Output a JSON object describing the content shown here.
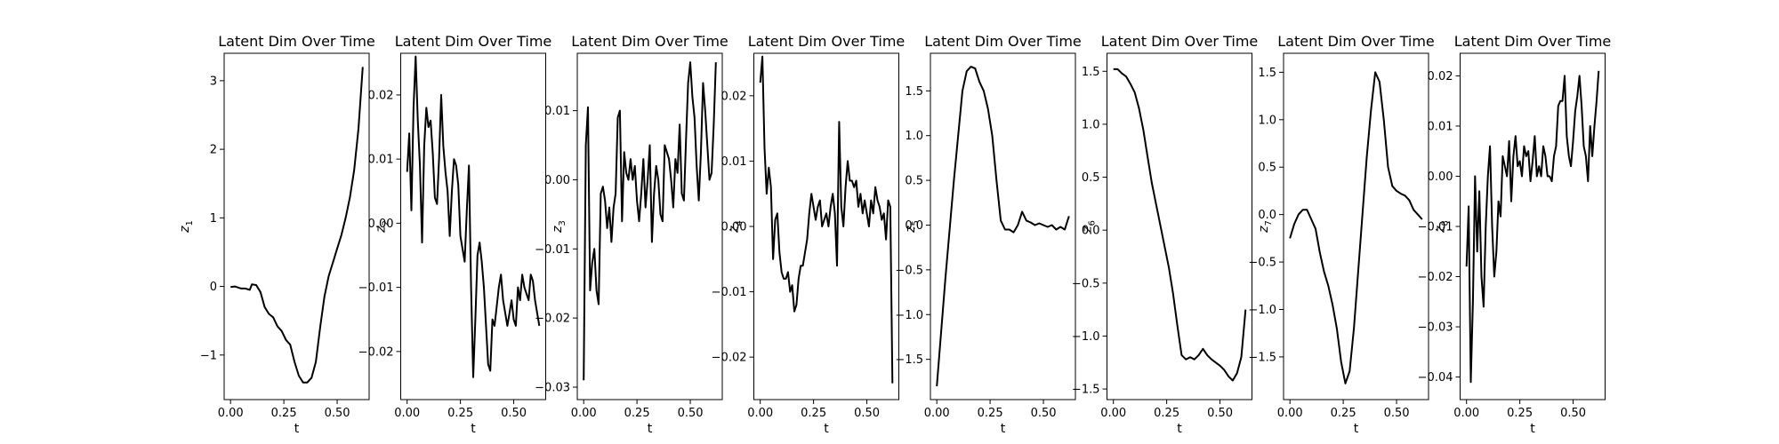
{
  "chart_data": [
    {
      "type": "line",
      "title": "Latent Dim Over Time",
      "xlabel": "t",
      "ylabel": "z",
      "ylabel_sub": "1",
      "xlim": [
        -0.03,
        0.65
      ],
      "ylim": [
        -1.65,
        3.4
      ],
      "xticks": [
        "0.00",
        "0.25",
        "0.50"
      ],
      "xtick_values": [
        0,
        0.25,
        0.5
      ],
      "yticks": [
        "−1",
        "0",
        "1",
        "2",
        "3"
      ],
      "ytick_values": [
        -1,
        0,
        1,
        2,
        3
      ],
      "series": [
        {
          "x": [
            0,
            0.02,
            0.05,
            0.07,
            0.09,
            0.1,
            0.12,
            0.14,
            0.16,
            0.18,
            0.2,
            0.22,
            0.24,
            0.26,
            0.28,
            0.3,
            0.32,
            0.34,
            0.36,
            0.38,
            0.4,
            0.42,
            0.44,
            0.46,
            0.48,
            0.5,
            0.52,
            0.54,
            0.56,
            0.58,
            0.6,
            0.62
          ],
          "y": [
            -0.01,
            0.0,
            -0.03,
            -0.03,
            -0.05,
            0.03,
            0.02,
            -0.08,
            -0.3,
            -0.4,
            -0.45,
            -0.58,
            -0.65,
            -0.78,
            -0.85,
            -1.1,
            -1.3,
            -1.4,
            -1.4,
            -1.33,
            -1.1,
            -0.6,
            -0.15,
            0.15,
            0.35,
            0.55,
            0.75,
            1.0,
            1.3,
            1.7,
            2.3,
            3.2
          ]
        }
      ]
    },
    {
      "type": "line",
      "title": "Latent Dim Over Time",
      "xlabel": "t",
      "ylabel": "z",
      "ylabel_sub": "2",
      "xlim": [
        -0.03,
        0.65
      ],
      "ylim": [
        -0.0275,
        0.0265
      ],
      "xticks": [
        "0.00",
        "0.25",
        "0.50"
      ],
      "xtick_values": [
        0,
        0.25,
        0.5
      ],
      "yticks": [
        "−0.02",
        "−0.01",
        "0.00",
        "0.01",
        "0.02"
      ],
      "ytick_values": [
        -0.02,
        -0.01,
        0,
        0.01,
        0.02
      ],
      "series": [
        {
          "x": [
            0,
            0.01,
            0.02,
            0.03,
            0.04,
            0.05,
            0.06,
            0.07,
            0.08,
            0.09,
            0.1,
            0.11,
            0.12,
            0.13,
            0.14,
            0.15,
            0.16,
            0.17,
            0.18,
            0.19,
            0.2,
            0.21,
            0.22,
            0.23,
            0.24,
            0.25,
            0.26,
            0.27,
            0.28,
            0.29,
            0.3,
            0.31,
            0.32,
            0.33,
            0.34,
            0.35,
            0.36,
            0.37,
            0.38,
            0.39,
            0.4,
            0.41,
            0.42,
            0.43,
            0.44,
            0.45,
            0.46,
            0.47,
            0.48,
            0.49,
            0.5,
            0.51,
            0.52,
            0.53,
            0.54,
            0.55,
            0.56,
            0.57,
            0.58,
            0.59,
            0.6,
            0.61,
            0.62
          ],
          "y": [
            0.008,
            0.014,
            0.002,
            0.018,
            0.026,
            0.016,
            0.009,
            -0.003,
            0.012,
            0.018,
            0.015,
            0.016,
            0.011,
            0.004,
            0.003,
            0.01,
            0.02,
            0.012,
            0.008,
            0.005,
            -0.002,
            0.005,
            0.01,
            0.009,
            0.006,
            -0.002,
            -0.004,
            -0.006,
            0.002,
            0.009,
            -0.01,
            -0.024,
            -0.015,
            -0.005,
            -0.003,
            -0.006,
            -0.01,
            -0.016,
            -0.022,
            -0.023,
            -0.015,
            -0.016,
            -0.013,
            -0.01,
            -0.008,
            -0.012,
            -0.014,
            -0.016,
            -0.014,
            -0.012,
            -0.015,
            -0.016,
            -0.01,
            -0.012,
            -0.008,
            -0.01,
            -0.011,
            -0.012,
            -0.008,
            -0.009,
            -0.012,
            -0.014,
            -0.016
          ]
        }
      ]
    },
    {
      "type": "line",
      "title": "Latent Dim Over Time",
      "xlabel": "t",
      "ylabel": "z",
      "ylabel_sub": "3",
      "xlim": [
        -0.03,
        0.65
      ],
      "ylim": [
        -0.0318,
        0.0183
      ],
      "xticks": [
        "0.00",
        "0.25",
        "0.50"
      ],
      "xtick_values": [
        0,
        0.25,
        0.5
      ],
      "yticks": [
        "−0.03",
        "−0.02",
        "−0.01",
        "0.00",
        "0.01"
      ],
      "ytick_values": [
        -0.03,
        -0.02,
        -0.01,
        0,
        0.01
      ],
      "series": [
        {
          "x": [
            0,
            0.01,
            0.02,
            0.03,
            0.04,
            0.05,
            0.06,
            0.07,
            0.08,
            0.09,
            0.1,
            0.11,
            0.12,
            0.13,
            0.14,
            0.15,
            0.16,
            0.17,
            0.18,
            0.19,
            0.2,
            0.21,
            0.22,
            0.23,
            0.24,
            0.25,
            0.26,
            0.27,
            0.28,
            0.29,
            0.3,
            0.31,
            0.32,
            0.33,
            0.34,
            0.35,
            0.36,
            0.37,
            0.38,
            0.39,
            0.4,
            0.41,
            0.42,
            0.43,
            0.44,
            0.45,
            0.46,
            0.47,
            0.48,
            0.49,
            0.5,
            0.51,
            0.52,
            0.53,
            0.54,
            0.55,
            0.56,
            0.57,
            0.58,
            0.59,
            0.6,
            0.61,
            0.62
          ],
          "y": [
            -0.029,
            0.005,
            0.0105,
            -0.016,
            -0.012,
            -0.01,
            -0.016,
            -0.018,
            -0.002,
            -0.001,
            -0.003,
            -0.007,
            -0.004,
            -0.009,
            -0.004,
            -0.002,
            0.009,
            0.01,
            -0.006,
            0.004,
            0.001,
            0.0,
            0.003,
            0.0,
            0.002,
            -0.003,
            -0.006,
            -0.002,
            0.003,
            -0.004,
            0.0,
            0.005,
            -0.009,
            -0.002,
            0.002,
            0.0,
            -0.005,
            -0.006,
            0.005,
            0.004,
            0.003,
            0.0,
            -0.004,
            0.003,
            0.001,
            0.008,
            -0.002,
            -0.003,
            0.006,
            0.014,
            0.017,
            0.012,
            0.009,
            0.002,
            -0.003,
            0.004,
            0.014,
            0.01,
            0.005,
            0.0,
            0.001,
            0.008,
            0.017
          ]
        }
      ]
    },
    {
      "type": "line",
      "title": "Latent Dim Over Time",
      "xlabel": "t",
      "ylabel": "z",
      "ylabel_sub": "4",
      "xlim": [
        -0.03,
        0.65
      ],
      "ylim": [
        -0.0265,
        0.0265
      ],
      "xticks": [
        "0.00",
        "0.25",
        "0.50"
      ],
      "xtick_values": [
        0,
        0.25,
        0.5
      ],
      "yticks": [
        "−0.02",
        "−0.01",
        "0.00",
        "0.01",
        "0.02"
      ],
      "ytick_values": [
        -0.02,
        -0.01,
        0,
        0.01,
        0.02
      ],
      "series": [
        {
          "x": [
            0,
            0.01,
            0.02,
            0.03,
            0.04,
            0.05,
            0.06,
            0.07,
            0.08,
            0.09,
            0.1,
            0.11,
            0.12,
            0.13,
            0.14,
            0.15,
            0.16,
            0.17,
            0.18,
            0.19,
            0.2,
            0.21,
            0.22,
            0.23,
            0.24,
            0.25,
            0.26,
            0.27,
            0.28,
            0.29,
            0.3,
            0.31,
            0.32,
            0.33,
            0.34,
            0.35,
            0.36,
            0.37,
            0.38,
            0.39,
            0.4,
            0.41,
            0.42,
            0.43,
            0.44,
            0.45,
            0.46,
            0.47,
            0.48,
            0.49,
            0.5,
            0.51,
            0.52,
            0.53,
            0.54,
            0.55,
            0.56,
            0.57,
            0.58,
            0.59,
            0.6,
            0.61,
            0.62
          ],
          "y": [
            0.022,
            0.026,
            0.012,
            0.005,
            0.009,
            0.006,
            -0.005,
            0.001,
            0.002,
            -0.004,
            -0.007,
            -0.008,
            -0.008,
            -0.007,
            -0.01,
            -0.009,
            -0.013,
            -0.012,
            -0.008,
            -0.006,
            -0.006,
            -0.004,
            -0.002,
            0.002,
            0.005,
            0.003,
            0.001,
            0.003,
            0.004,
            0.0,
            0.001,
            0.002,
            0.0,
            0.003,
            0.005,
            0.002,
            -0.006,
            0.016,
            0.003,
            0.0,
            0.006,
            0.01,
            0.007,
            0.007,
            0.006,
            0.007,
            0.003,
            0.005,
            0.002,
            0.004,
            0.002,
            0.0,
            0.004,
            0.002,
            0.006,
            0.004,
            0.003,
            0.001,
            0.002,
            -0.002,
            0.004,
            0.003,
            -0.024
          ]
        }
      ]
    },
    {
      "type": "line",
      "title": "Latent Dim Over Time",
      "xlabel": "t",
      "ylabel": "z",
      "ylabel_sub": "5",
      "xlim": [
        -0.03,
        0.65
      ],
      "ylim": [
        -1.95,
        1.92
      ],
      "xticks": [
        "0.00",
        "0.25",
        "0.50"
      ],
      "xtick_values": [
        0,
        0.25,
        0.5
      ],
      "yticks": [
        "−1.5",
        "−1.0",
        "−0.5",
        "0.0",
        "0.5",
        "1.0",
        "1.5"
      ],
      "ytick_values": [
        -1.5,
        -1.0,
        -0.5,
        0,
        0.5,
        1.0,
        1.5
      ],
      "series": [
        {
          "x": [
            0,
            0.02,
            0.04,
            0.06,
            0.08,
            0.1,
            0.12,
            0.14,
            0.16,
            0.18,
            0.2,
            0.22,
            0.24,
            0.26,
            0.28,
            0.3,
            0.32,
            0.34,
            0.36,
            0.38,
            0.4,
            0.42,
            0.44,
            0.46,
            0.48,
            0.5,
            0.52,
            0.54,
            0.56,
            0.58,
            0.6,
            0.62
          ],
          "y": [
            -1.8,
            -1.2,
            -0.6,
            -0.05,
            0.5,
            1.0,
            1.5,
            1.72,
            1.77,
            1.75,
            1.6,
            1.5,
            1.3,
            1.0,
            0.5,
            0.05,
            -0.05,
            -0.05,
            -0.08,
            0.0,
            0.15,
            0.05,
            0.03,
            0.0,
            0.02,
            0.0,
            -0.02,
            0.0,
            -0.05,
            -0.02,
            -0.05,
            0.1
          ]
        }
      ]
    },
    {
      "type": "line",
      "title": "Latent Dim Over Time",
      "xlabel": "t",
      "ylabel": "z",
      "ylabel_sub": "6",
      "xlim": [
        -0.03,
        0.65
      ],
      "ylim": [
        -1.6,
        1.67
      ],
      "xticks": [
        "0.00",
        "0.25",
        "0.50"
      ],
      "xtick_values": [
        0,
        0.25,
        0.5
      ],
      "yticks": [
        "−1.5",
        "−1.0",
        "−0.5",
        "0.0",
        "0.5",
        "1.0",
        "1.5"
      ],
      "ytick_values": [
        -1.5,
        -1.0,
        -0.5,
        0,
        0.5,
        1.0,
        1.5
      ],
      "series": [
        {
          "x": [
            0,
            0.02,
            0.04,
            0.06,
            0.08,
            0.1,
            0.12,
            0.14,
            0.16,
            0.18,
            0.2,
            0.22,
            0.24,
            0.26,
            0.28,
            0.3,
            0.32,
            0.34,
            0.36,
            0.38,
            0.4,
            0.42,
            0.44,
            0.46,
            0.48,
            0.5,
            0.52,
            0.54,
            0.56,
            0.58,
            0.6,
            0.62
          ],
          "y": [
            1.52,
            1.52,
            1.48,
            1.45,
            1.38,
            1.3,
            1.15,
            0.95,
            0.7,
            0.45,
            0.25,
            0.05,
            -0.15,
            -0.35,
            -0.6,
            -0.9,
            -1.18,
            -1.22,
            -1.2,
            -1.22,
            -1.18,
            -1.12,
            -1.18,
            -1.22,
            -1.25,
            -1.28,
            -1.32,
            -1.38,
            -1.42,
            -1.35,
            -1.2,
            -0.75
          ]
        }
      ]
    },
    {
      "type": "line",
      "title": "Latent Dim Over Time",
      "xlabel": "t",
      "ylabel": "z",
      "ylabel_sub": "7",
      "xlim": [
        -0.03,
        0.65
      ],
      "ylim": [
        -1.95,
        1.7
      ],
      "xticks": [
        "0.00",
        "0.25",
        "0.50"
      ],
      "xtick_values": [
        0,
        0.25,
        0.5
      ],
      "yticks": [
        "−1.5",
        "−1.0",
        "−0.5",
        "0.0",
        "0.5",
        "1.0",
        "1.5"
      ],
      "ytick_values": [
        -1.5,
        -1.0,
        -0.5,
        0,
        0.5,
        1.0,
        1.5
      ],
      "series": [
        {
          "x": [
            0,
            0.02,
            0.04,
            0.06,
            0.08,
            0.1,
            0.12,
            0.14,
            0.16,
            0.18,
            0.2,
            0.22,
            0.24,
            0.26,
            0.28,
            0.3,
            0.32,
            0.34,
            0.36,
            0.38,
            0.4,
            0.42,
            0.44,
            0.46,
            0.48,
            0.5,
            0.52,
            0.54,
            0.56,
            0.58,
            0.6,
            0.62
          ],
          "y": [
            -0.25,
            -0.1,
            0.0,
            0.05,
            0.05,
            -0.05,
            -0.15,
            -0.4,
            -0.6,
            -0.75,
            -0.95,
            -1.2,
            -1.55,
            -1.78,
            -1.65,
            -1.2,
            -0.6,
            0.0,
            0.6,
            1.1,
            1.5,
            1.4,
            1.0,
            0.5,
            0.3,
            0.25,
            0.22,
            0.2,
            0.15,
            0.05,
            0.0,
            -0.05
          ]
        }
      ]
    },
    {
      "type": "line",
      "title": "Latent Dim Over Time",
      "xlabel": "t",
      "ylabel": "z",
      "ylabel_sub": "8",
      "xlim": [
        -0.03,
        0.65
      ],
      "ylim": [
        -0.0445,
        0.0245
      ],
      "xticks": [
        "0.00",
        "0.25",
        "0.50"
      ],
      "xtick_values": [
        0,
        0.25,
        0.5
      ],
      "yticks": [
        "−0.04",
        "−0.03",
        "−0.02",
        "−0.01",
        "0.00",
        "0.01",
        "0.02"
      ],
      "ytick_values": [
        -0.04,
        -0.03,
        -0.02,
        -0.01,
        0,
        0.01,
        0.02
      ],
      "series": [
        {
          "x": [
            0,
            0.01,
            0.02,
            0.03,
            0.04,
            0.05,
            0.06,
            0.07,
            0.08,
            0.09,
            0.1,
            0.11,
            0.12,
            0.13,
            0.14,
            0.15,
            0.16,
            0.17,
            0.18,
            0.19,
            0.2,
            0.21,
            0.22,
            0.23,
            0.24,
            0.25,
            0.26,
            0.27,
            0.28,
            0.29,
            0.3,
            0.31,
            0.32,
            0.33,
            0.34,
            0.35,
            0.36,
            0.37,
            0.38,
            0.39,
            0.4,
            0.41,
            0.42,
            0.43,
            0.44,
            0.45,
            0.46,
            0.47,
            0.48,
            0.49,
            0.5,
            0.51,
            0.52,
            0.53,
            0.54,
            0.55,
            0.56,
            0.57,
            0.58,
            0.59,
            0.6,
            0.61,
            0.62
          ],
          "y": [
            -0.018,
            -0.006,
            -0.041,
            -0.025,
            0.0,
            -0.015,
            -0.003,
            -0.02,
            -0.026,
            -0.01,
            0.0,
            0.006,
            -0.01,
            -0.02,
            -0.015,
            -0.005,
            -0.008,
            0.004,
            0.002,
            0.0,
            0.007,
            -0.005,
            0.004,
            0.008,
            0.002,
            0.003,
            0.0,
            0.006,
            0.004,
            0.005,
            -0.001,
            0.003,
            0.008,
            0.0,
            0.002,
            0.0,
            0.006,
            0.004,
            0.0,
            0.0,
            -0.001,
            0.004,
            0.006,
            0.014,
            0.015,
            0.015,
            0.02,
            0.008,
            0.004,
            0.002,
            0.007,
            0.013,
            0.016,
            0.02,
            0.014,
            0.006,
            0.004,
            -0.001,
            0.01,
            0.004,
            0.01,
            0.015,
            0.021
          ]
        }
      ]
    }
  ]
}
